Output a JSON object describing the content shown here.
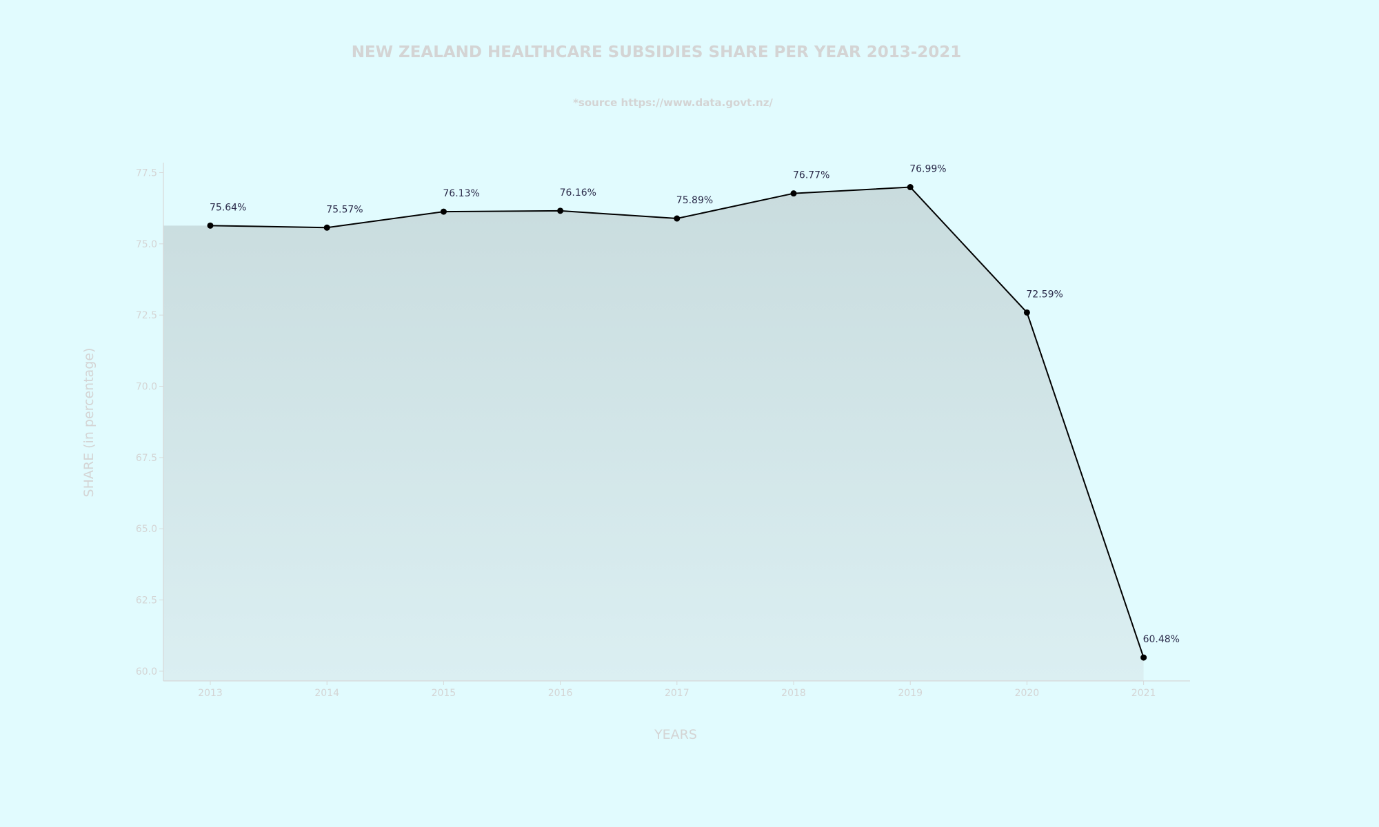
{
  "colors": {
    "background": "#e1fbfe",
    "area_top": "#c9dcde",
    "area_bottom": "#dbeff2",
    "line": "#000000",
    "marker": "#000000",
    "text_muted": "#d4d4d4",
    "data_label": "#2b2b4a",
    "axis": "#d8d8d8"
  },
  "chart_data": {
    "type": "area",
    "title": "NEW ZEALAND HEALTHCARE SUBSIDIES SHARE PER YEAR 2013-2021",
    "subtitle": "*source https://www.data.govt.nz/",
    "xlabel": "YEARS",
    "ylabel": "SHARE (in percentage)",
    "x": [
      "2013",
      "2014",
      "2015",
      "2016",
      "2017",
      "2018",
      "2019",
      "2020",
      "2021"
    ],
    "values": [
      75.64,
      75.57,
      76.13,
      76.16,
      75.89,
      76.77,
      76.99,
      72.59,
      60.48
    ],
    "data_labels": [
      "75.64%",
      "75.57%",
      "76.13%",
      "76.16%",
      "75.89%",
      "76.77%",
      "76.99%",
      "72.59%",
      "60.48%"
    ],
    "yticks": [
      "60.0",
      "62.5",
      "65.0",
      "67.5",
      "70.0",
      "72.5",
      "75.0",
      "77.5"
    ],
    "ylim": [
      59.66,
      77.85
    ],
    "grid": false,
    "legend": "none"
  }
}
